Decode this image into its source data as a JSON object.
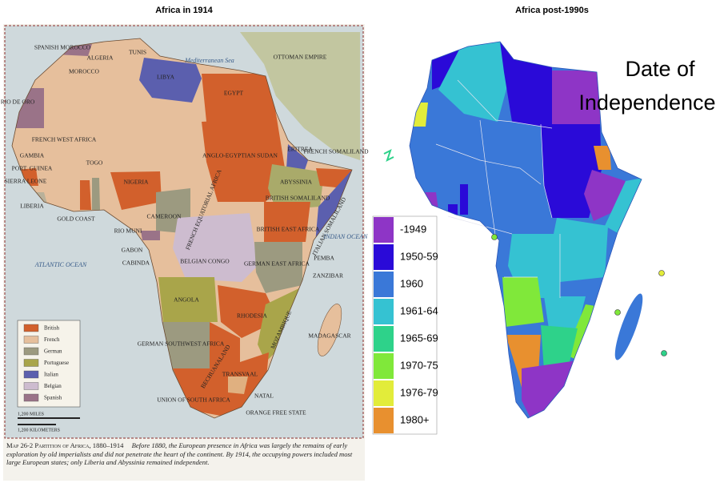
{
  "left_map": {
    "title": "Africa in 1914",
    "labels": [
      "SPANISH MOROCCO",
      "TUNIS",
      "ALGERIA",
      "MOROCCO",
      "OTTOMAN EMPIRE",
      "Mediterranean Sea",
      "LIBYA",
      "EGYPT",
      "RIO DE ORO",
      "FRENCH WEST AFRICA",
      "GAMBIA",
      "PORT. GUINEA",
      "SIERRA LEONE",
      "TOGO",
      "ANGLO-EGYPTIAN SUDAN",
      "ERITREA",
      "FRENCH SOMALILAND",
      "ABYSSINIA",
      "BRITISH SOMALILAND",
      "NIGERIA",
      "FRENCH EQUATORIAL AFRICA",
      "LIBERIA",
      "GOLD COAST",
      "CAMEROON",
      "RIO MUNI",
      "BRITISH EAST AFRICA",
      "ITALIAN SOMALILAND",
      "INDIAN OCEAN",
      "GABON",
      "CABINDA",
      "BELGIAN CONGO",
      "ATLANTIC OCEAN",
      "GERMAN EAST AFRICA",
      "PEMBA",
      "ZANZIBAR",
      "ANGOLA",
      "RHODESIA",
      "MOZAMBIQUE",
      "MADAGASCAR",
      "GERMAN SOUTHWEST AFRICA",
      "BECHUANALAND",
      "TRANSVAAL",
      "UNION OF SOUTH AFRICA",
      "NATAL",
      "ORANGE FREE STATE"
    ],
    "legend": [
      {
        "label": "British",
        "color": "#d2602c"
      },
      {
        "label": "French",
        "color": "#e6bf9c"
      },
      {
        "label": "German",
        "color": "#9c9a80"
      },
      {
        "label": "Portuguese",
        "color": "#a9a54a"
      },
      {
        "label": "Italian",
        "color": "#5b5fae"
      },
      {
        "label": "Belgian",
        "color": "#cdbccf"
      },
      {
        "label": "Spanish",
        "color": "#9a7388"
      }
    ],
    "scale": [
      "1,200 MILES",
      "1,200 KILOMETERS"
    ],
    "caption": {
      "heading": "Map 26-2  Partition of Africa, 1880–1914",
      "body": "Before 1880, the European presence in Africa was largely the remains of early exploration by old imperialists and did not penetrate the heart of the continent. By 1914, the occupying powers included most large European states; only Liberia and Abyssinia remained independent."
    }
  },
  "right_map": {
    "title": "Africa post-1990s",
    "heading": [
      "Date of",
      "Independence"
    ],
    "legend": [
      {
        "label": "-1949",
        "color": "#8e35c6"
      },
      {
        "label": "1950-59",
        "color": "#2a0ad8"
      },
      {
        "label": "1960",
        "color": "#3a78d8"
      },
      {
        "label": "1961-64",
        "color": "#35c2d2"
      },
      {
        "label": "1965-69",
        "color": "#2ed28a"
      },
      {
        "label": "1970-75",
        "color": "#80e83a"
      },
      {
        "label": "1976-79",
        "color": "#e2ec3a"
      },
      {
        "label": "1980+",
        "color": "#e8902f"
      }
    ]
  }
}
